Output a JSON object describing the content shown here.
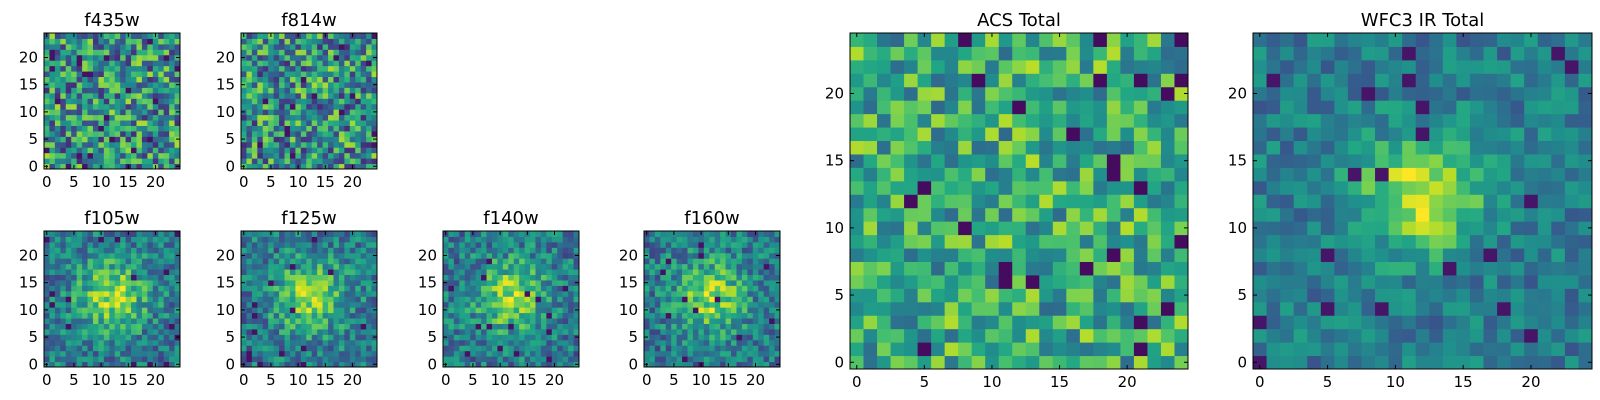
{
  "figure": {
    "colormap": "viridis",
    "grid": false,
    "legend": "none"
  },
  "chart_data": [
    {
      "type": "heatmap",
      "title": "f435w",
      "rows": 25,
      "cols": 25,
      "xlim": [
        0,
        24
      ],
      "ylim": [
        0,
        24
      ],
      "x_ticks": [
        "0",
        "5",
        "10",
        "15",
        "20"
      ],
      "y_ticks": [
        "0",
        "5",
        "10",
        "15",
        "20"
      ],
      "pattern": "noise",
      "seed": 11
    },
    {
      "type": "heatmap",
      "title": "f814w",
      "rows": 25,
      "cols": 25,
      "xlim": [
        0,
        24
      ],
      "ylim": [
        0,
        24
      ],
      "x_ticks": [
        "0",
        "5",
        "10",
        "15",
        "20"
      ],
      "y_ticks": [
        "0",
        "5",
        "10",
        "15",
        "20"
      ],
      "pattern": "noise",
      "seed": 23
    },
    {
      "type": "heatmap",
      "title": "f105w",
      "rows": 25,
      "cols": 25,
      "xlim": [
        0,
        24
      ],
      "ylim": [
        0,
        24
      ],
      "x_ticks": [
        "0",
        "5",
        "10",
        "15",
        "20"
      ],
      "y_ticks": [
        "0",
        "5",
        "10",
        "15",
        "20"
      ],
      "pattern": "source",
      "seed": 37
    },
    {
      "type": "heatmap",
      "title": "f125w",
      "rows": 25,
      "cols": 25,
      "xlim": [
        0,
        24
      ],
      "ylim": [
        0,
        24
      ],
      "x_ticks": [
        "0",
        "5",
        "10",
        "15",
        "20"
      ],
      "y_ticks": [
        "0",
        "5",
        "10",
        "15",
        "20"
      ],
      "pattern": "source",
      "seed": 41
    },
    {
      "type": "heatmap",
      "title": "f140w",
      "rows": 25,
      "cols": 25,
      "xlim": [
        0,
        24
      ],
      "ylim": [
        0,
        24
      ],
      "x_ticks": [
        "0",
        "5",
        "10",
        "15",
        "20"
      ],
      "y_ticks": [
        "0",
        "5",
        "10",
        "15",
        "20"
      ],
      "pattern": "source",
      "seed": 53
    },
    {
      "type": "heatmap",
      "title": "f160w",
      "rows": 25,
      "cols": 25,
      "xlim": [
        0,
        24
      ],
      "ylim": [
        0,
        24
      ],
      "x_ticks": [
        "0",
        "5",
        "10",
        "15",
        "20"
      ],
      "y_ticks": [
        "0",
        "5",
        "10",
        "15",
        "20"
      ],
      "pattern": "source",
      "seed": 67
    },
    {
      "type": "heatmap",
      "title": "ACS Total",
      "rows": 25,
      "cols": 25,
      "xlim": [
        0,
        24
      ],
      "ylim": [
        0,
        24
      ],
      "x_ticks": [
        "0",
        "5",
        "10",
        "15",
        "20"
      ],
      "y_ticks": [
        "0",
        "5",
        "10",
        "15",
        "20"
      ],
      "pattern": "noise-bright",
      "seed": 79
    },
    {
      "type": "heatmap",
      "title": "WFC3 IR Total",
      "rows": 25,
      "cols": 25,
      "xlim": [
        0,
        24
      ],
      "ylim": [
        0,
        24
      ],
      "x_ticks": [
        "0",
        "5",
        "10",
        "15",
        "20"
      ],
      "y_ticks": [
        "0",
        "5",
        "10",
        "15",
        "20"
      ],
      "pattern": "source-strong",
      "seed": 97
    }
  ]
}
